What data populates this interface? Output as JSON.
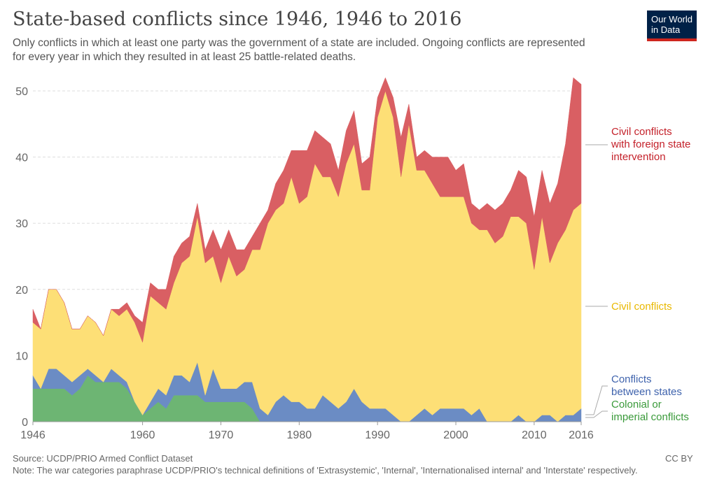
{
  "header": {
    "title": "State-based conflicts since 1946, 1946 to 2016",
    "subtitle": "Only conflicts in which at least one party was the government of a state are included. Ongoing conflicts are represented for every year in which they resulted in at least 25 battle-related deaths.",
    "logo": "Our World in Data"
  },
  "footer": {
    "source": "Source: UCDP/PRIO Armed Conflict Dataset",
    "license": "CC BY",
    "note": "Note: The war categories paraphrase UCDP/PRIO's technical definitions of 'Extrasystemic', 'Internal', 'Internationalised internal' and 'Interstate' respectively."
  },
  "chart_data": {
    "type": "area",
    "stacked": true,
    "title": "State-based conflicts since 1946, 1946 to 2016",
    "xlim": [
      1946,
      2016
    ],
    "ylim": [
      0,
      50
    ],
    "grid": true,
    "x_ticks": [
      1946,
      1960,
      1970,
      1980,
      1990,
      2000,
      2010,
      2016
    ],
    "y_ticks": [
      0,
      10,
      20,
      30,
      40,
      50
    ],
    "x_start": 1946,
    "series": [
      {
        "name": "Colonial or imperial conflicts",
        "color": "#6db573",
        "values": [
          5,
          5,
          5,
          5,
          5,
          4,
          5,
          7,
          6,
          6,
          6,
          6,
          5,
          3,
          1,
          2,
          3,
          2,
          4,
          4,
          4,
          4,
          3,
          3,
          3,
          3,
          3,
          3,
          2,
          0,
          0,
          0,
          0,
          0,
          0,
          0,
          0,
          0,
          0,
          0,
          0,
          0,
          0,
          0,
          0,
          0,
          0,
          0,
          0,
          0,
          0,
          0,
          0,
          0,
          0,
          0,
          0,
          0,
          0,
          0,
          0,
          0,
          0,
          0,
          0,
          0,
          0,
          0,
          0,
          0,
          0
        ]
      },
      {
        "name": "Conflicts between states",
        "color": "#6b8cc4",
        "values": [
          2,
          0,
          3,
          3,
          2,
          2,
          2,
          1,
          1,
          0,
          2,
          1,
          1,
          0,
          0,
          1,
          2,
          2,
          3,
          3,
          2,
          5,
          1,
          5,
          2,
          2,
          2,
          3,
          4,
          2,
          1,
          3,
          4,
          3,
          3,
          2,
          2,
          4,
          3,
          2,
          3,
          5,
          3,
          2,
          2,
          2,
          1,
          0,
          0,
          1,
          2,
          1,
          2,
          2,
          2,
          2,
          1,
          2,
          0,
          0,
          0,
          0,
          1,
          0,
          0,
          1,
          1,
          0,
          1,
          1,
          2
        ]
      },
      {
        "name": "Civil conflicts",
        "color": "#fddf76",
        "values": [
          8,
          9,
          12,
          12,
          11,
          8,
          7,
          8,
          8,
          7,
          9,
          9,
          11,
          12,
          11,
          16,
          13,
          13,
          14,
          17,
          19,
          22,
          20,
          17,
          16,
          20,
          17,
          17,
          20,
          24,
          29,
          29,
          29,
          34,
          30,
          32,
          37,
          33,
          34,
          32,
          36,
          37,
          32,
          33,
          44,
          48,
          45,
          37,
          45,
          37,
          36,
          35,
          32,
          32,
          32,
          32,
          29,
          27,
          29,
          27,
          28,
          31,
          30,
          30,
          23,
          30,
          23,
          27,
          28,
          31,
          31
        ]
      },
      {
        "name": "Civil conflicts with foreign state intervention",
        "color": "#d95f63",
        "values": [
          2,
          0,
          0,
          0,
          0,
          0,
          0,
          0,
          0,
          0,
          0,
          1,
          1,
          1,
          3,
          2,
          2,
          3,
          4,
          3,
          3,
          2,
          2,
          4,
          5,
          4,
          4,
          3,
          2,
          4,
          2,
          4,
          5,
          4,
          8,
          7,
          5,
          6,
          5,
          4,
          5,
          5,
          4,
          5,
          3,
          2,
          3,
          6,
          3,
          2,
          3,
          4,
          6,
          6,
          4,
          5,
          3,
          3,
          4,
          5,
          5,
          4,
          7,
          7,
          8,
          7,
          9,
          9,
          13,
          20,
          18
        ]
      }
    ],
    "labels": {
      "red": [
        "Civil conflicts",
        "with foreign state",
        "intervention"
      ],
      "yellow": [
        "Civil conflicts"
      ],
      "blue": [
        "Conflicts",
        "between states"
      ],
      "green": [
        "Colonial or",
        "imperial conflicts"
      ]
    },
    "label_colors": {
      "red": "#c4212a",
      "yellow": "#e9b800",
      "blue": "#3f63ad",
      "green": "#3a9a3a"
    }
  }
}
